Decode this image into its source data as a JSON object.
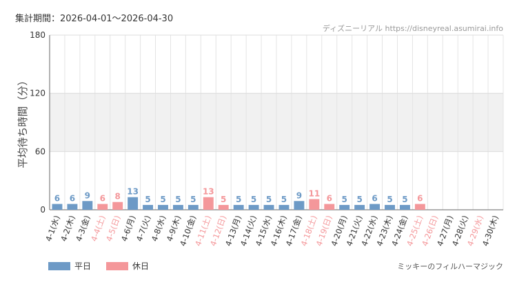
{
  "header": {
    "period": "集計期間：2026-04-01～2026-04-30"
  },
  "watermark": "ディズニーリアル https://disneyreal.asumirai.info",
  "legend": {
    "weekday": "平日",
    "holiday": "休日"
  },
  "footer": {
    "attraction": "ミッキーのフィルハーマジック"
  },
  "colors": {
    "weekday": "#6d9ac6",
    "holiday": "#f4979a",
    "band": "#f1f1f1",
    "grid": "#e4e4e4"
  },
  "chart_data": {
    "type": "bar",
    "ylabel": "平均待ち時間（分）",
    "ylim": [
      0,
      180
    ],
    "yticks": [
      0,
      60,
      120,
      180
    ],
    "shaded_band": [
      60,
      120
    ],
    "grid": true,
    "legend_position": "bottom-left",
    "categories": [
      "4-1(水)",
      "4-2(木)",
      "4-3(金)",
      "4-4(土)",
      "4-5(日)",
      "4-6(月)",
      "4-7(火)",
      "4-8(水)",
      "4-9(木)",
      "4-10(金)",
      "4-11(土)",
      "4-12(日)",
      "4-13(月)",
      "4-14(火)",
      "4-15(水)",
      "4-16(木)",
      "4-17(金)",
      "4-18(土)",
      "4-19(日)",
      "4-20(月)",
      "4-21(火)",
      "4-22(水)",
      "4-23(木)",
      "4-24(金)",
      "4-25(土)",
      "4-26(日)",
      "4-27(月)",
      "4-28(火)",
      "4-29(水)",
      "4-30(木)"
    ],
    "day_type": [
      "weekday",
      "weekday",
      "weekday",
      "holiday",
      "holiday",
      "weekday",
      "weekday",
      "weekday",
      "weekday",
      "weekday",
      "holiday",
      "holiday",
      "weekday",
      "weekday",
      "weekday",
      "weekday",
      "weekday",
      "holiday",
      "holiday",
      "weekday",
      "weekday",
      "weekday",
      "weekday",
      "weekday",
      "holiday",
      "holiday",
      "weekday",
      "weekday",
      "holiday",
      "weekday"
    ],
    "values": [
      6,
      6,
      9,
      6,
      8,
      13,
      5,
      5,
      5,
      5,
      13,
      5,
      5,
      5,
      5,
      5,
      9,
      11,
      6,
      5,
      5,
      6,
      5,
      5,
      6,
      null,
      null,
      null,
      null,
      null
    ]
  }
}
